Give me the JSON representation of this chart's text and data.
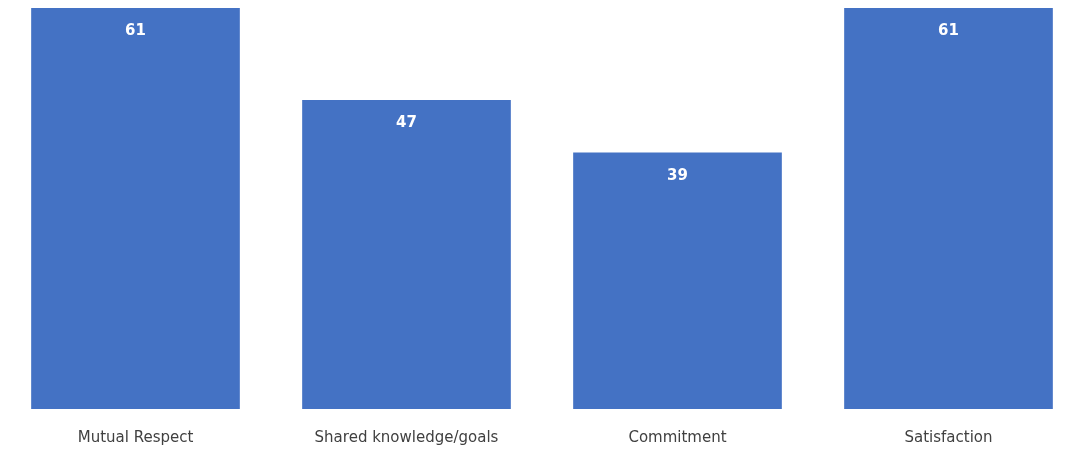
{
  "chart_data": {
    "type": "bar",
    "categories": [
      "Mutual Respect",
      "Shared knowledge/goals",
      "Commitment",
      "Satisfaction"
    ],
    "values": [
      61,
      47,
      39,
      61
    ],
    "color": "#4472c4",
    "ylim": [
      0,
      61
    ],
    "data_labels": true,
    "grid": false,
    "legend": false,
    "tick_labels": "x"
  }
}
